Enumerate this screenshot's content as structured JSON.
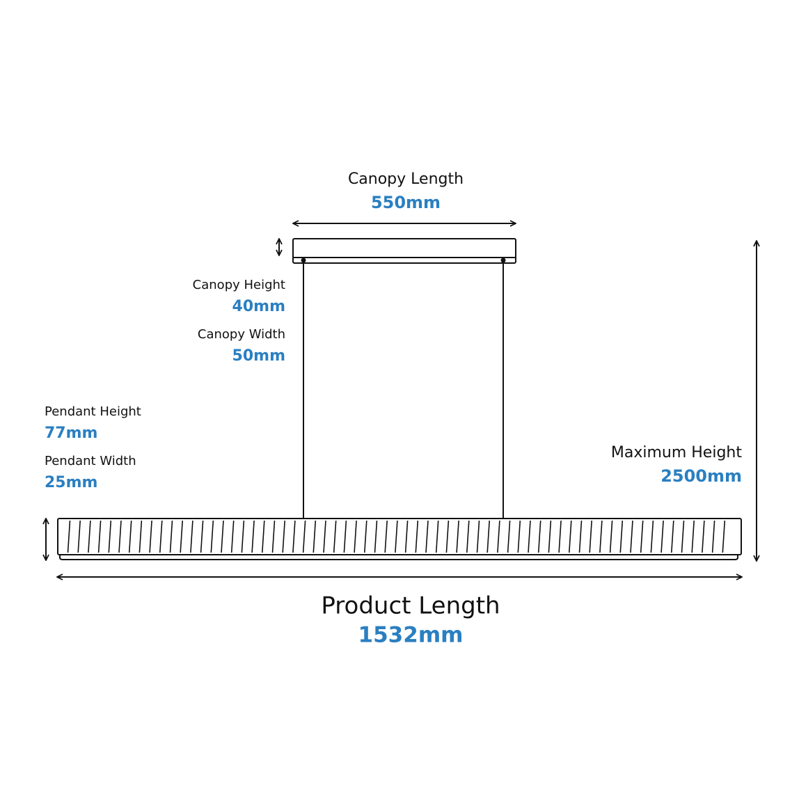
{
  "dimensions": {
    "canopy_length": {
      "label": "Canopy Length",
      "value": "550mm"
    },
    "canopy_height": {
      "label": "Canopy Height",
      "value": "40mm"
    },
    "canopy_width": {
      "label": "Canopy Width",
      "value": "50mm"
    },
    "pendant_height": {
      "label": "Pendant Height",
      "value": "77mm"
    },
    "pendant_width": {
      "label": "Pendant Width",
      "value": "25mm"
    },
    "maximum_height": {
      "label": "Maximum Height",
      "value": "2500mm"
    },
    "product_length": {
      "label": "Product Length",
      "value": "1532mm"
    }
  }
}
